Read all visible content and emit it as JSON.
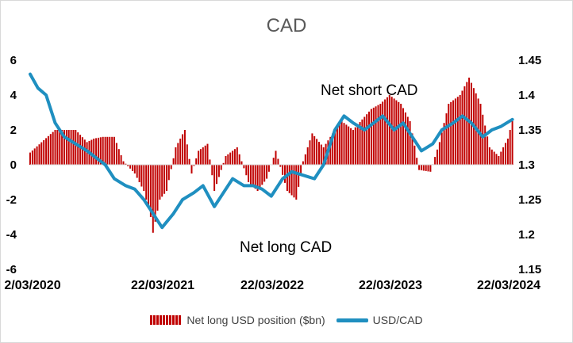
{
  "chart_data": {
    "type": "bar+line",
    "title": "CAD",
    "x_tick_labels": [
      "2/03/2020",
      "22/03/2021",
      "22/03/2022",
      "22/03/2023",
      "22/03/2024"
    ],
    "x_range": [
      "2020-03-22",
      "2024-04-15"
    ],
    "y_left": {
      "ticks": [
        "6",
        "4",
        "2",
        "0",
        "-2",
        "-4",
        "-6"
      ],
      "range": [
        -6,
        6
      ]
    },
    "y_right": {
      "ticks": [
        "1.45",
        "1.4",
        "1.35",
        "1.3",
        "1.25",
        "1.2",
        "1.15"
      ],
      "range": [
        1.15,
        1.45
      ]
    },
    "grid": false,
    "legend_position": "bottom",
    "annotations": [
      "Net short CAD",
      "Net long CAD"
    ],
    "series": [
      {
        "name": "Net long USD position ($bn)",
        "type": "bar",
        "axis": "left",
        "color": "#c00000",
        "x": [
          "2020-03-22",
          "2020-06-07",
          "2020-08-09",
          "2020-09-13",
          "2020-10-04",
          "2020-11-01",
          "2020-12-06",
          "2021-01-03",
          "2021-02-07",
          "2021-03-07",
          "2021-03-28",
          "2021-04-04",
          "2021-04-25",
          "2021-05-16",
          "2021-06-13",
          "2021-07-11",
          "2021-08-01",
          "2021-08-22",
          "2021-09-19",
          "2021-10-10",
          "2021-11-14",
          "2021-12-19",
          "2022-01-23",
          "2022-02-20",
          "2022-03-20",
          "2022-04-17",
          "2022-05-22",
          "2022-06-19",
          "2022-07-10",
          "2022-08-07",
          "2022-09-11",
          "2022-10-16",
          "2022-11-06",
          "2022-12-11",
          "2023-01-08",
          "2023-02-05",
          "2023-03-05",
          "2023-04-02",
          "2023-05-07",
          "2023-06-04",
          "2023-07-02",
          "2023-08-06",
          "2023-09-03",
          "2023-10-01",
          "2023-11-05",
          "2023-12-03",
          "2024-01-07",
          "2024-02-04",
          "2024-03-03",
          "2024-03-31",
          "2024-04-14"
        ],
        "values": [
          0.7,
          2.0,
          2.0,
          1.3,
          1.5,
          1.6,
          1.6,
          0.2,
          -0.5,
          -1.5,
          -3.0,
          -3.9,
          -2.0,
          -1.5,
          1.0,
          2.0,
          -0.5,
          0.8,
          1.2,
          -1.5,
          0.5,
          1.0,
          -1.0,
          -1.5,
          -0.8,
          0.8,
          -1.5,
          -2.0,
          0.2,
          1.8,
          1.0,
          2.0,
          2.5,
          2.0,
          2.6,
          3.2,
          3.5,
          4.0,
          3.5,
          2.5,
          -0.3,
          -0.4,
          1.3,
          3.5,
          4.0,
          5.0,
          3.5,
          1.0,
          0.5,
          1.5,
          2.5
        ]
      },
      {
        "name": "USD/CAD",
        "type": "line",
        "axis": "right",
        "color": "#1f8fc0",
        "x": [
          "2020-03-22",
          "2020-04-15",
          "2020-05-10",
          "2020-06-07",
          "2020-07-05",
          "2020-08-09",
          "2020-09-13",
          "2020-10-11",
          "2020-11-08",
          "2020-12-06",
          "2021-01-10",
          "2021-02-07",
          "2021-03-07",
          "2021-04-04",
          "2021-05-02",
          "2021-06-06",
          "2021-07-04",
          "2021-08-08",
          "2021-09-05",
          "2021-10-10",
          "2021-11-07",
          "2021-12-05",
          "2022-01-09",
          "2022-02-06",
          "2022-03-06",
          "2022-04-03",
          "2022-05-08",
          "2022-06-05",
          "2022-07-10",
          "2022-08-14",
          "2022-09-11",
          "2022-10-16",
          "2022-11-13",
          "2022-12-11",
          "2023-01-15",
          "2023-02-12",
          "2023-03-12",
          "2023-04-16",
          "2023-05-14",
          "2023-06-11",
          "2023-07-09",
          "2023-08-13",
          "2023-09-10",
          "2023-10-15",
          "2023-11-12",
          "2023-12-10",
          "2024-01-14",
          "2024-02-11",
          "2024-03-10",
          "2024-04-14"
        ],
        "values": [
          1.43,
          1.41,
          1.4,
          1.36,
          1.34,
          1.33,
          1.32,
          1.31,
          1.3,
          1.28,
          1.27,
          1.265,
          1.25,
          1.23,
          1.21,
          1.23,
          1.25,
          1.26,
          1.27,
          1.24,
          1.26,
          1.28,
          1.27,
          1.27,
          1.265,
          1.255,
          1.28,
          1.29,
          1.285,
          1.28,
          1.3,
          1.35,
          1.37,
          1.36,
          1.35,
          1.36,
          1.37,
          1.35,
          1.36,
          1.34,
          1.32,
          1.33,
          1.35,
          1.36,
          1.37,
          1.36,
          1.34,
          1.35,
          1.355,
          1.365
        ]
      }
    ]
  }
}
